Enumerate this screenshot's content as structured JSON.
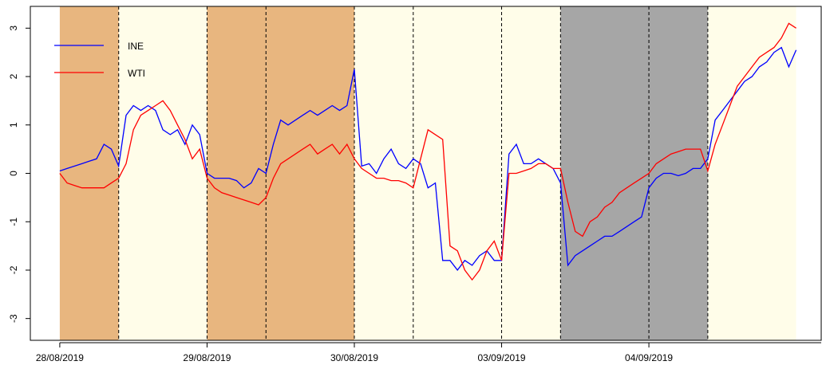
{
  "chart_data": {
    "type": "line",
    "xlim": [
      -4,
      103.4
    ],
    "xticks": [
      {
        "value": 0,
        "label": "28/08/2019"
      },
      {
        "value": 20,
        "label": "29/08/2019"
      },
      {
        "value": 40,
        "label": "30/08/2019"
      },
      {
        "value": 60,
        "label": "03/09/2019"
      },
      {
        "value": 80,
        "label": "04/09/2019"
      }
    ],
    "ylim": [
      -3.45,
      3.45
    ],
    "yticks": [
      -3,
      -2,
      -1,
      0,
      1,
      2,
      3
    ],
    "legend": "top-left",
    "shading": [
      {
        "from": 0,
        "to": 8,
        "color": "#e8b67f"
      },
      {
        "from": 8,
        "to": 20,
        "color": "#fffde9"
      },
      {
        "from": 20,
        "to": 28,
        "color": "#e8b67f"
      },
      {
        "from": 28,
        "to": 40,
        "color": "#e8b67f"
      },
      {
        "from": 40,
        "to": 48,
        "color": "#fffde9"
      },
      {
        "from": 48,
        "to": 60,
        "color": "#fffde9"
      },
      {
        "from": 60,
        "to": 68,
        "color": "#fffde9"
      },
      {
        "from": 68,
        "to": 80,
        "color": "#a6a6a6"
      },
      {
        "from": 80,
        "to": 88,
        "color": "#a6a6a6"
      },
      {
        "from": 88,
        "to": 100,
        "color": "#fffde9"
      }
    ],
    "dividers": [
      8,
      20,
      28,
      40,
      48,
      60,
      68,
      80,
      88
    ],
    "series": [
      {
        "name": "INE",
        "color": "#0000ff",
        "values": [
          0.05,
          0.1,
          0.15,
          0.2,
          0.25,
          0.3,
          0.6,
          0.5,
          0.15,
          1.2,
          1.4,
          1.3,
          1.4,
          1.3,
          0.9,
          0.8,
          0.9,
          0.6,
          1.0,
          0.8,
          0.0,
          -0.1,
          -0.1,
          -0.1,
          -0.15,
          -0.3,
          -0.2,
          0.1,
          0.0,
          0.6,
          1.1,
          1.0,
          1.1,
          1.2,
          1.3,
          1.2,
          1.3,
          1.4,
          1.3,
          1.4,
          2.15,
          0.15,
          0.2,
          0.0,
          0.3,
          0.5,
          0.2,
          0.1,
          0.3,
          0.2,
          -0.3,
          -0.2,
          -1.8,
          -1.8,
          -2.0,
          -1.8,
          -1.9,
          -1.7,
          -1.6,
          -1.8,
          -1.8,
          0.4,
          0.6,
          0.2,
          0.2,
          0.3,
          0.2,
          0.1,
          -0.2,
          -1.9,
          -1.7,
          -1.6,
          -1.5,
          -1.4,
          -1.3,
          -1.3,
          -1.2,
          -1.1,
          -1.0,
          -0.9,
          -0.3,
          -0.1,
          0.0,
          0.0,
          -0.05,
          0.0,
          0.1,
          0.1,
          0.3,
          1.1,
          1.3,
          1.5,
          1.7,
          1.9,
          2.0,
          2.2,
          2.3,
          2.5,
          2.6,
          2.2,
          2.55
        ]
      },
      {
        "name": "WTI",
        "color": "#ff0000",
        "values": [
          0.0,
          -0.2,
          -0.25,
          -0.3,
          -0.3,
          -0.3,
          -0.3,
          -0.2,
          -0.1,
          0.2,
          0.9,
          1.2,
          1.3,
          1.4,
          1.5,
          1.3,
          1.0,
          0.7,
          0.3,
          0.5,
          -0.1,
          -0.3,
          -0.4,
          -0.45,
          -0.5,
          -0.55,
          -0.6,
          -0.65,
          -0.5,
          -0.1,
          0.2,
          0.3,
          0.4,
          0.5,
          0.6,
          0.4,
          0.5,
          0.6,
          0.4,
          0.6,
          0.3,
          0.1,
          0.0,
          -0.1,
          -0.1,
          -0.15,
          -0.15,
          -0.2,
          -0.3,
          0.3,
          0.9,
          0.8,
          0.7,
          -1.5,
          -1.6,
          -2.0,
          -2.2,
          -2.0,
          -1.6,
          -1.4,
          -1.8,
          0.0,
          0.0,
          0.05,
          0.1,
          0.2,
          0.2,
          0.1,
          0.1,
          -0.6,
          -1.2,
          -1.3,
          -1.0,
          -0.9,
          -0.7,
          -0.6,
          -0.4,
          -0.3,
          -0.2,
          -0.1,
          0.0,
          0.2,
          0.3,
          0.4,
          0.45,
          0.5,
          0.5,
          0.5,
          0.05,
          0.6,
          1.0,
          1.4,
          1.8,
          2.0,
          2.2,
          2.4,
          2.5,
          2.6,
          2.8,
          3.1,
          3.0
        ]
      }
    ]
  }
}
